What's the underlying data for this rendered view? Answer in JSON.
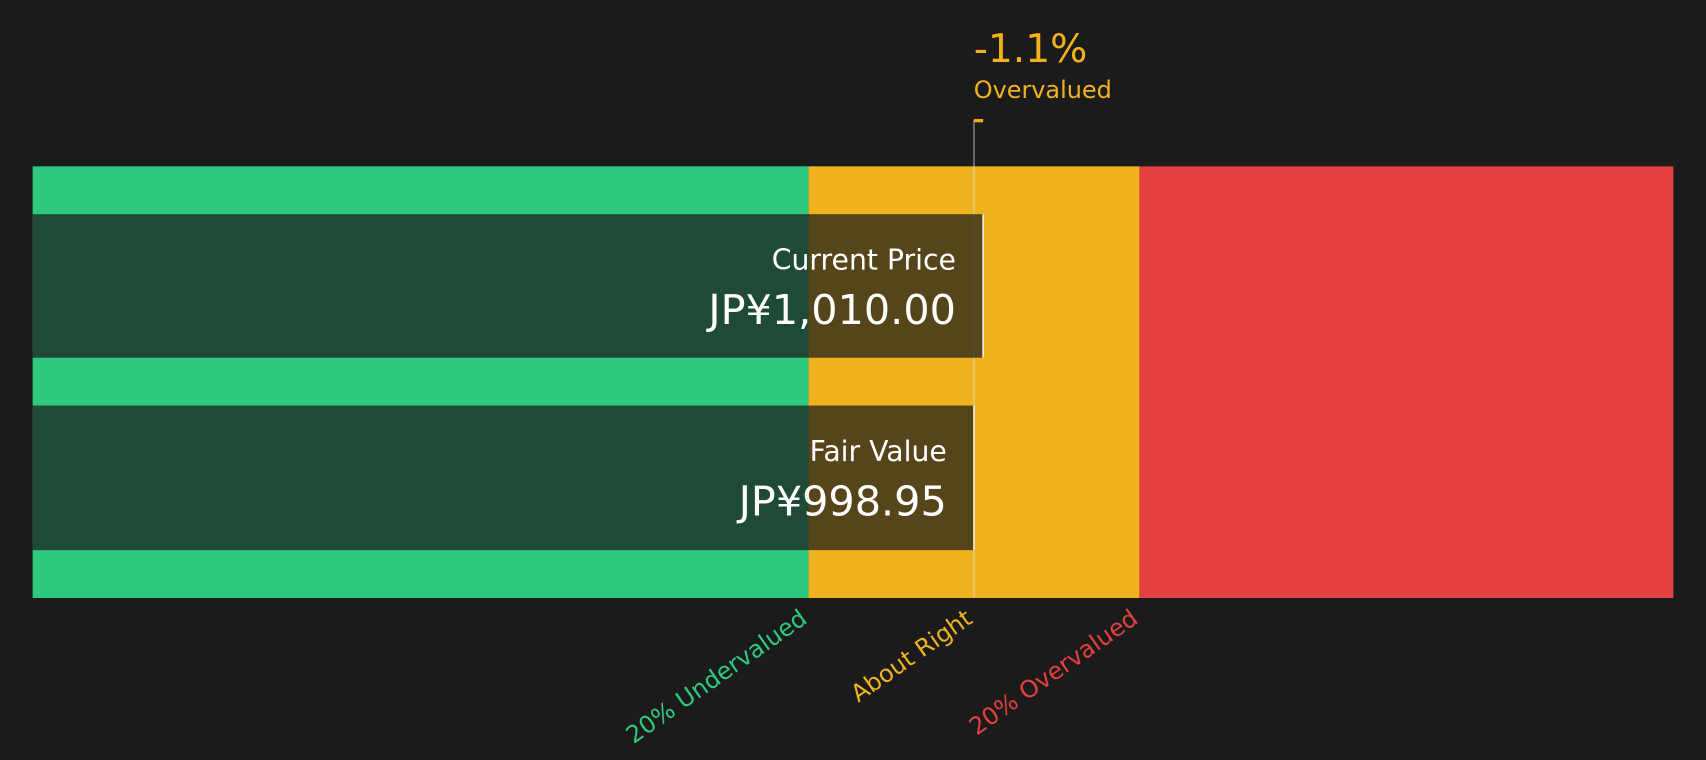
{
  "header": {
    "percent": "-1.1%",
    "verdict": "Overvalued"
  },
  "current_price": {
    "label": "Current Price",
    "value": 1010,
    "value_label": "JP¥1,010.00"
  },
  "fair_value": {
    "label": "Fair Value",
    "value": 998.95,
    "value_label": "JP¥998.95"
  },
  "zones": [
    "20% Undervalued",
    "About Right",
    "20% Overvalued"
  ]
}
